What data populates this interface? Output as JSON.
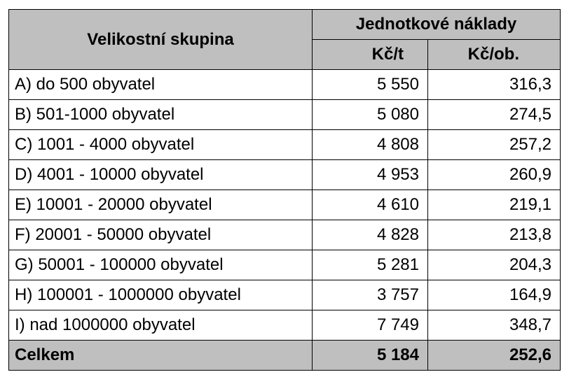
{
  "header": {
    "group_label": "Velikostní skupina",
    "cost_group_label": "Jednotkové náklady",
    "unit_per_ton": "Kč/t",
    "unit_per_capita": "Kč/ob."
  },
  "rows": [
    {
      "label": "A) do 500 obyvatel",
      "per_ton": "5 550",
      "per_capita": "316,3"
    },
    {
      "label": "B) 501-1000 obyvatel",
      "per_ton": "5 080",
      "per_capita": "274,5"
    },
    {
      "label": "C) 1001 - 4000 obyvatel",
      "per_ton": "4 808",
      "per_capita": "257,2"
    },
    {
      "label": "D) 4001 - 10000 obyvatel",
      "per_ton": "4 953",
      "per_capita": "260,9"
    },
    {
      "label": "E) 10001 - 20000 obyvatel",
      "per_ton": "4 610",
      "per_capita": "219,1"
    },
    {
      "label": "F) 20001 - 50000 obyvatel",
      "per_ton": "4 828",
      "per_capita": "213,8"
    },
    {
      "label": "G) 50001 - 100000 obyvatel",
      "per_ton": "5 281",
      "per_capita": "204,3"
    },
    {
      "label": "H) 100001 - 1000000 obyvatel",
      "per_ton": "3 757",
      "per_capita": "164,9"
    },
    {
      "label": "I) nad 1000000 obyvatel",
      "per_ton": "7 749",
      "per_capita": "348,7"
    }
  ],
  "total": {
    "label": "Celkem",
    "per_ton": "5 184",
    "per_capita": "252,6"
  }
}
